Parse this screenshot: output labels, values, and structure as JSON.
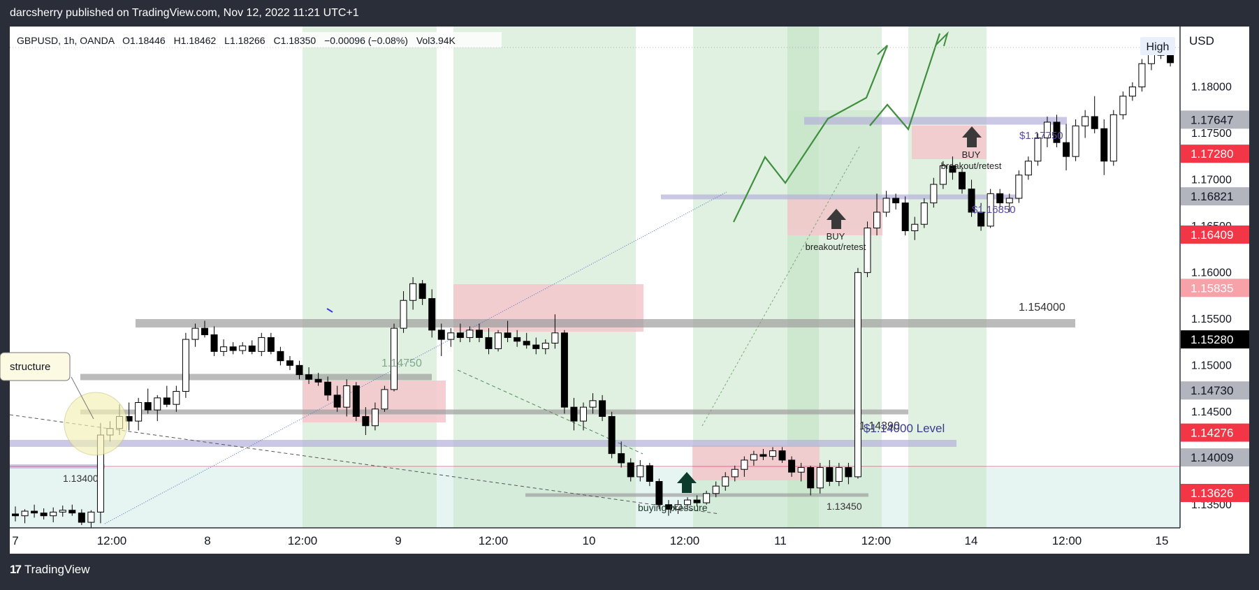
{
  "header": {
    "publisher": "darcsherry published on TradingView.com, Nov 12, 2022 11:21 UTC+1"
  },
  "footer": {
    "brand": "TradingView",
    "logo_glyph": "17"
  },
  "legend": {
    "symbol": "GBPUSD, 1h, OANDA",
    "open": "O1.18446",
    "high": "H1.18462",
    "low": "L1.18266",
    "close": "C1.18350",
    "change": "−0.00096 (−0.08%)",
    "volume": "Vol3.94K"
  },
  "buttons": {
    "high": "High",
    "currency": "USD"
  },
  "annotations": {
    "structure": "structure",
    "level_1_13400": "1.13400",
    "level_1_14750": "1.14750",
    "level_1_154000": "1.154000",
    "level_1_14390": "1.14390",
    "level_14000": "$1.14000 Level",
    "level_1_13450": "1.13450",
    "level_1_17750": "$1.17750",
    "level_1_16850": "$1.16850",
    "buying_pressure": "buying pressure",
    "buy1": "BUY",
    "buy1_sub": "breakout/retest",
    "buy2": "BUY",
    "buy2_sub": "breakout/retest"
  },
  "colors": {
    "green_zone": "#c8e6c9",
    "red_zone": "#f4c7cc",
    "gray_level": "#9e9e9e",
    "purple_level": "#b3b0d9",
    "bull_candle": "#ffffff",
    "bear_candle": "#000000",
    "path_green": "#3f8f3f",
    "label_red": "#f23645",
    "label_gray": "#9e9e9e",
    "label_black": "#000000"
  },
  "chart_data": {
    "type": "candlestick",
    "symbol": "GBPUSD",
    "interval": "1h",
    "ylim": [
      1.1325,
      1.1865
    ],
    "y_ticks": [
      "1.18000",
      "1.17500",
      "1.17000",
      "1.16500",
      "1.16000",
      "1.15500",
      "1.15000",
      "1.14500",
      "1.14000",
      "1.13500"
    ],
    "x_ticks": [
      "7",
      "12:00",
      "8",
      "12:00",
      "9",
      "12:00",
      "10",
      "12:00",
      "11",
      "12:00",
      "14",
      "12:00",
      "15"
    ],
    "price_labels": [
      {
        "text": "1.17647",
        "style": "gray"
      },
      {
        "text": "1.17280",
        "style": "red"
      },
      {
        "text": "1.16821",
        "style": "gray"
      },
      {
        "text": "1.16409",
        "style": "red"
      },
      {
        "text": "1.15835",
        "style": "pink"
      },
      {
        "text": "1.15280",
        "style": "black"
      },
      {
        "text": "1.14730",
        "style": "gray"
      },
      {
        "text": "1.14276",
        "style": "red"
      },
      {
        "text": "1.14009",
        "style": "gray"
      },
      {
        "text": "1.13626",
        "style": "red"
      }
    ],
    "candles": [
      {
        "o": 1.134,
        "h": 1.1348,
        "l": 1.1332,
        "c": 1.1338
      },
      {
        "o": 1.1338,
        "h": 1.1345,
        "l": 1.133,
        "c": 1.1343
      },
      {
        "o": 1.1343,
        "h": 1.135,
        "l": 1.1336,
        "c": 1.1341
      },
      {
        "o": 1.1341,
        "h": 1.1346,
        "l": 1.1334,
        "c": 1.1338
      },
      {
        "o": 1.1338,
        "h": 1.1347,
        "l": 1.1331,
        "c": 1.1342
      },
      {
        "o": 1.1342,
        "h": 1.1349,
        "l": 1.1337,
        "c": 1.1344
      },
      {
        "o": 1.1344,
        "h": 1.135,
        "l": 1.1338,
        "c": 1.1341
      },
      {
        "o": 1.1341,
        "h": 1.1345,
        "l": 1.1328,
        "c": 1.1331
      },
      {
        "o": 1.1331,
        "h": 1.1344,
        "l": 1.1325,
        "c": 1.1342
      },
      {
        "o": 1.1342,
        "h": 1.1438,
        "l": 1.133,
        "c": 1.1425
      },
      {
        "o": 1.1425,
        "h": 1.144,
        "l": 1.1418,
        "c": 1.1432
      },
      {
        "o": 1.1432,
        "h": 1.1458,
        "l": 1.1425,
        "c": 1.1445
      },
      {
        "o": 1.1445,
        "h": 1.146,
        "l": 1.143,
        "c": 1.144
      },
      {
        "o": 1.144,
        "h": 1.1465,
        "l": 1.143,
        "c": 1.146
      },
      {
        "o": 1.146,
        "h": 1.1475,
        "l": 1.1448,
        "c": 1.1452
      },
      {
        "o": 1.1452,
        "h": 1.1468,
        "l": 1.144,
        "c": 1.1465
      },
      {
        "o": 1.1465,
        "h": 1.1478,
        "l": 1.1455,
        "c": 1.1458
      },
      {
        "o": 1.1458,
        "h": 1.1478,
        "l": 1.145,
        "c": 1.1472
      },
      {
        "o": 1.1472,
        "h": 1.1535,
        "l": 1.1465,
        "c": 1.1528
      },
      {
        "o": 1.1528,
        "h": 1.1545,
        "l": 1.152,
        "c": 1.154
      },
      {
        "o": 1.154,
        "h": 1.1548,
        "l": 1.153,
        "c": 1.1533
      },
      {
        "o": 1.1533,
        "h": 1.1542,
        "l": 1.151,
        "c": 1.1515
      },
      {
        "o": 1.1515,
        "h": 1.1528,
        "l": 1.151,
        "c": 1.152
      },
      {
        "o": 1.152,
        "h": 1.1525,
        "l": 1.1512,
        "c": 1.1516
      },
      {
        "o": 1.1516,
        "h": 1.1525,
        "l": 1.1512,
        "c": 1.1521
      },
      {
        "o": 1.1521,
        "h": 1.1527,
        "l": 1.1512,
        "c": 1.1515
      },
      {
        "o": 1.1515,
        "h": 1.1535,
        "l": 1.151,
        "c": 1.153
      },
      {
        "o": 1.153,
        "h": 1.1535,
        "l": 1.1512,
        "c": 1.1515
      },
      {
        "o": 1.1515,
        "h": 1.152,
        "l": 1.15,
        "c": 1.1505
      },
      {
        "o": 1.1505,
        "h": 1.151,
        "l": 1.1495,
        "c": 1.15
      },
      {
        "o": 1.15,
        "h": 1.1505,
        "l": 1.1485,
        "c": 1.149
      },
      {
        "o": 1.149,
        "h": 1.1498,
        "l": 1.148,
        "c": 1.1485
      },
      {
        "o": 1.1485,
        "h": 1.1492,
        "l": 1.1478,
        "c": 1.1482
      },
      {
        "o": 1.1482,
        "h": 1.1488,
        "l": 1.1462,
        "c": 1.1468
      },
      {
        "o": 1.1468,
        "h": 1.1478,
        "l": 1.145,
        "c": 1.1455
      },
      {
        "o": 1.1455,
        "h": 1.1485,
        "l": 1.1445,
        "c": 1.1478
      },
      {
        "o": 1.1478,
        "h": 1.1482,
        "l": 1.144,
        "c": 1.1445
      },
      {
        "o": 1.1445,
        "h": 1.1455,
        "l": 1.1425,
        "c": 1.1435
      },
      {
        "o": 1.1435,
        "h": 1.146,
        "l": 1.143,
        "c": 1.1453
      },
      {
        "o": 1.1453,
        "h": 1.1478,
        "l": 1.145,
        "c": 1.1474
      },
      {
        "o": 1.1474,
        "h": 1.1545,
        "l": 1.1472,
        "c": 1.154
      },
      {
        "o": 1.154,
        "h": 1.158,
        "l": 1.1535,
        "c": 1.157
      },
      {
        "o": 1.157,
        "h": 1.1595,
        "l": 1.156,
        "c": 1.1588
      },
      {
        "o": 1.1588,
        "h": 1.1592,
        "l": 1.1565,
        "c": 1.1572
      },
      {
        "o": 1.1572,
        "h": 1.1582,
        "l": 1.153,
        "c": 1.1538
      },
      {
        "o": 1.1538,
        "h": 1.1545,
        "l": 1.151,
        "c": 1.1528
      },
      {
        "o": 1.1528,
        "h": 1.154,
        "l": 1.152,
        "c": 1.1535
      },
      {
        "o": 1.1535,
        "h": 1.1545,
        "l": 1.1525,
        "c": 1.153
      },
      {
        "o": 1.153,
        "h": 1.1542,
        "l": 1.1525,
        "c": 1.1538
      },
      {
        "o": 1.1538,
        "h": 1.1545,
        "l": 1.1525,
        "c": 1.153
      },
      {
        "o": 1.153,
        "h": 1.154,
        "l": 1.1512,
        "c": 1.1518
      },
      {
        "o": 1.1518,
        "h": 1.1538,
        "l": 1.1515,
        "c": 1.1535
      },
      {
        "o": 1.1535,
        "h": 1.1548,
        "l": 1.1525,
        "c": 1.153
      },
      {
        "o": 1.153,
        "h": 1.1538,
        "l": 1.152,
        "c": 1.1526
      },
      {
        "o": 1.1526,
        "h": 1.1535,
        "l": 1.1518,
        "c": 1.1522
      },
      {
        "o": 1.1522,
        "h": 1.153,
        "l": 1.1512,
        "c": 1.1518
      },
      {
        "o": 1.1518,
        "h": 1.1528,
        "l": 1.1512,
        "c": 1.1524
      },
      {
        "o": 1.1524,
        "h": 1.1555,
        "l": 1.1518,
        "c": 1.1535
      },
      {
        "o": 1.1535,
        "h": 1.1538,
        "l": 1.1448,
        "c": 1.1455
      },
      {
        "o": 1.1455,
        "h": 1.1465,
        "l": 1.143,
        "c": 1.144
      },
      {
        "o": 1.144,
        "h": 1.146,
        "l": 1.143,
        "c": 1.1455
      },
      {
        "o": 1.1455,
        "h": 1.147,
        "l": 1.1448,
        "c": 1.1462
      },
      {
        "o": 1.1462,
        "h": 1.1468,
        "l": 1.144,
        "c": 1.1445
      },
      {
        "o": 1.1445,
        "h": 1.145,
        "l": 1.14,
        "c": 1.1405
      },
      {
        "o": 1.1405,
        "h": 1.1418,
        "l": 1.139,
        "c": 1.1395
      },
      {
        "o": 1.1395,
        "h": 1.14,
        "l": 1.1375,
        "c": 1.138
      },
      {
        "o": 1.138,
        "h": 1.1398,
        "l": 1.1375,
        "c": 1.1392
      },
      {
        "o": 1.1392,
        "h": 1.1395,
        "l": 1.137,
        "c": 1.1375
      },
      {
        "o": 1.1375,
        "h": 1.1378,
        "l": 1.1345,
        "c": 1.135
      },
      {
        "o": 1.135,
        "h": 1.1355,
        "l": 1.1338,
        "c": 1.1345
      },
      {
        "o": 1.1345,
        "h": 1.1355,
        "l": 1.134,
        "c": 1.135
      },
      {
        "o": 1.135,
        "h": 1.1358,
        "l": 1.1345,
        "c": 1.1355
      },
      {
        "o": 1.1355,
        "h": 1.136,
        "l": 1.1348,
        "c": 1.1352
      },
      {
        "o": 1.1352,
        "h": 1.1365,
        "l": 1.135,
        "c": 1.1362
      },
      {
        "o": 1.1362,
        "h": 1.1375,
        "l": 1.1358,
        "c": 1.137
      },
      {
        "o": 1.137,
        "h": 1.1385,
        "l": 1.1365,
        "c": 1.138
      },
      {
        "o": 1.138,
        "h": 1.1392,
        "l": 1.1375,
        "c": 1.1388
      },
      {
        "o": 1.1388,
        "h": 1.1402,
        "l": 1.138,
        "c": 1.1398
      },
      {
        "o": 1.1398,
        "h": 1.1408,
        "l": 1.1392,
        "c": 1.1404
      },
      {
        "o": 1.1404,
        "h": 1.141,
        "l": 1.1398,
        "c": 1.1402
      },
      {
        "o": 1.1402,
        "h": 1.1412,
        "l": 1.1398,
        "c": 1.1408
      },
      {
        "o": 1.1408,
        "h": 1.1412,
        "l": 1.1395,
        "c": 1.1398
      },
      {
        "o": 1.1398,
        "h": 1.1402,
        "l": 1.138,
        "c": 1.1385
      },
      {
        "o": 1.1385,
        "h": 1.1395,
        "l": 1.1375,
        "c": 1.139
      },
      {
        "o": 1.139,
        "h": 1.1392,
        "l": 1.136,
        "c": 1.1368
      },
      {
        "o": 1.1368,
        "h": 1.1395,
        "l": 1.1362,
        "c": 1.139
      },
      {
        "o": 1.139,
        "h": 1.1398,
        "l": 1.137,
        "c": 1.1375
      },
      {
        "o": 1.1375,
        "h": 1.1395,
        "l": 1.137,
        "c": 1.139
      },
      {
        "o": 1.139,
        "h": 1.1395,
        "l": 1.1372,
        "c": 1.138
      },
      {
        "o": 1.138,
        "h": 1.1605,
        "l": 1.1378,
        "c": 1.16
      },
      {
        "o": 1.16,
        "h": 1.1655,
        "l": 1.1595,
        "c": 1.1648
      },
      {
        "o": 1.1648,
        "h": 1.1685,
        "l": 1.164,
        "c": 1.1665
      },
      {
        "o": 1.1665,
        "h": 1.1688,
        "l": 1.166,
        "c": 1.168
      },
      {
        "o": 1.168,
        "h": 1.1685,
        "l": 1.1668,
        "c": 1.1675
      },
      {
        "o": 1.1675,
        "h": 1.1682,
        "l": 1.164,
        "c": 1.1645
      },
      {
        "o": 1.1645,
        "h": 1.166,
        "l": 1.1635,
        "c": 1.1652
      },
      {
        "o": 1.1652,
        "h": 1.168,
        "l": 1.1648,
        "c": 1.1675
      },
      {
        "o": 1.1675,
        "h": 1.1702,
        "l": 1.167,
        "c": 1.1695
      },
      {
        "o": 1.1695,
        "h": 1.172,
        "l": 1.169,
        "c": 1.1715
      },
      {
        "o": 1.1715,
        "h": 1.1725,
        "l": 1.17,
        "c": 1.1708
      },
      {
        "o": 1.1708,
        "h": 1.1712,
        "l": 1.1685,
        "c": 1.169
      },
      {
        "o": 1.169,
        "h": 1.17,
        "l": 1.166,
        "c": 1.1665
      },
      {
        "o": 1.1665,
        "h": 1.1675,
        "l": 1.1645,
        "c": 1.165
      },
      {
        "o": 1.165,
        "h": 1.169,
        "l": 1.1648,
        "c": 1.1685
      },
      {
        "o": 1.1685,
        "h": 1.169,
        "l": 1.167,
        "c": 1.1675
      },
      {
        "o": 1.1675,
        "h": 1.1685,
        "l": 1.1665,
        "c": 1.168
      },
      {
        "o": 1.168,
        "h": 1.171,
        "l": 1.1675,
        "c": 1.1705
      },
      {
        "o": 1.1705,
        "h": 1.1725,
        "l": 1.17,
        "c": 1.172
      },
      {
        "o": 1.172,
        "h": 1.175,
        "l": 1.1715,
        "c": 1.1745
      },
      {
        "o": 1.1745,
        "h": 1.1768,
        "l": 1.1735,
        "c": 1.1762
      },
      {
        "o": 1.1762,
        "h": 1.177,
        "l": 1.1735,
        "c": 1.174
      },
      {
        "o": 1.174,
        "h": 1.176,
        "l": 1.171,
        "c": 1.1725
      },
      {
        "o": 1.1725,
        "h": 1.1765,
        "l": 1.172,
        "c": 1.1758
      },
      {
        "o": 1.1758,
        "h": 1.1775,
        "l": 1.1745,
        "c": 1.1768
      },
      {
        "o": 1.1768,
        "h": 1.179,
        "l": 1.175,
        "c": 1.1755
      },
      {
        "o": 1.1755,
        "h": 1.1765,
        "l": 1.1705,
        "c": 1.172
      },
      {
        "o": 1.172,
        "h": 1.1775,
        "l": 1.1715,
        "c": 1.177
      },
      {
        "o": 1.177,
        "h": 1.1795,
        "l": 1.1765,
        "c": 1.179
      },
      {
        "o": 1.179,
        "h": 1.1805,
        "l": 1.1785,
        "c": 1.18
      },
      {
        "o": 1.18,
        "h": 1.183,
        "l": 1.1795,
        "c": 1.1825
      },
      {
        "o": 1.1825,
        "h": 1.1845,
        "l": 1.1818,
        "c": 1.184
      },
      {
        "o": 1.184,
        "h": 1.1846,
        "l": 1.183,
        "c": 1.1834
      },
      {
        "o": 1.1834,
        "h": 1.184,
        "l": 1.1822,
        "c": 1.1826
      }
    ]
  }
}
